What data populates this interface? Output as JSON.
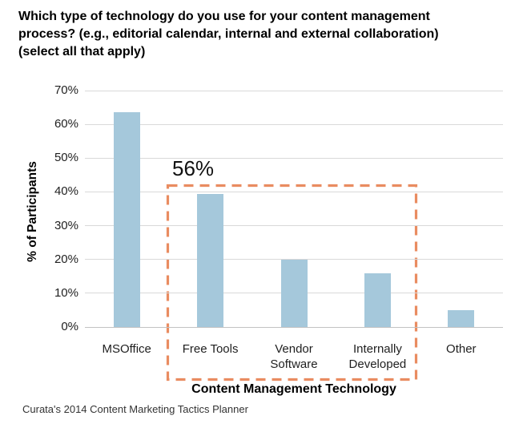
{
  "title": {
    "lines": [
      "Which type of technology do you use for your content management",
      "process? (e.g., editorial calendar, internal and external collaboration)",
      "(select all that apply)"
    ]
  },
  "chart_data": {
    "type": "bar",
    "categories": [
      "MSOffice",
      "Free Tools",
      "Vendor Software",
      "Internally Developed",
      "Other"
    ],
    "values": [
      63.5,
      39.5,
      20,
      16,
      5
    ],
    "xlabel": "Content Management Technology",
    "ylabel": "% of Participants",
    "ylim": [
      0,
      70
    ],
    "ytick_step": 10,
    "ytick_labels": [
      "0%",
      "10%",
      "20%",
      "30%",
      "40%",
      "50%",
      "60%",
      "70%"
    ],
    "grid": true,
    "legend": "none",
    "annotation": {
      "label": "56%",
      "boxed_categories": [
        "Free Tools",
        "Vendor Software",
        "Internally Developed"
      ]
    },
    "bar_color": "#A5C8DB",
    "annotation_color": "#E98C61",
    "grid_color": "#D9D9D9",
    "axis_line_color": "#C2C2C2"
  },
  "footer": {
    "source": "Curata's 2014 Content Marketing Tactics Planner"
  }
}
